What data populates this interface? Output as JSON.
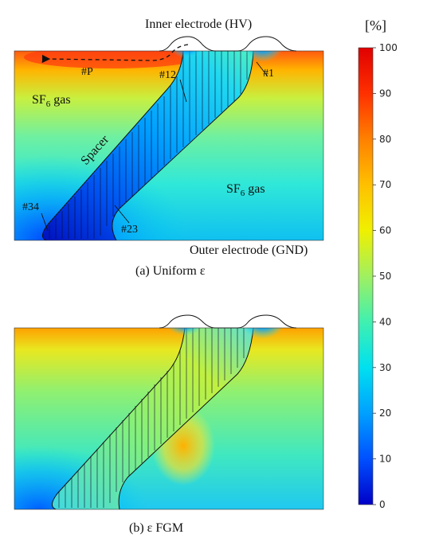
{
  "panel_a": {
    "top_label": "Inner electrode (HV)",
    "bottom_label": "Outer electrode (GND)",
    "caption": "(a) Uniform ε",
    "gas_label_main": "SF",
    "gas_label_sub": "6",
    "gas_label_tail": " gas",
    "spacer_label": "Spacer",
    "points": [
      "#P",
      "#12",
      "#1",
      "#34",
      "#23"
    ]
  },
  "panel_b": {
    "caption": "(b) ε FGM"
  },
  "colorbar": {
    "unit": "[%]",
    "ticks": [
      "100",
      "90",
      "80",
      "70",
      "60",
      "50",
      "40",
      "30",
      "20",
      "10",
      "0"
    ],
    "colors": [
      "#0000c8",
      "#0050ff",
      "#00a0ff",
      "#00e0f0",
      "#40f0b0",
      "#a0f060",
      "#f0f000",
      "#ffc000",
      "#ff8000",
      "#ff3000",
      "#e00000"
    ]
  }
}
